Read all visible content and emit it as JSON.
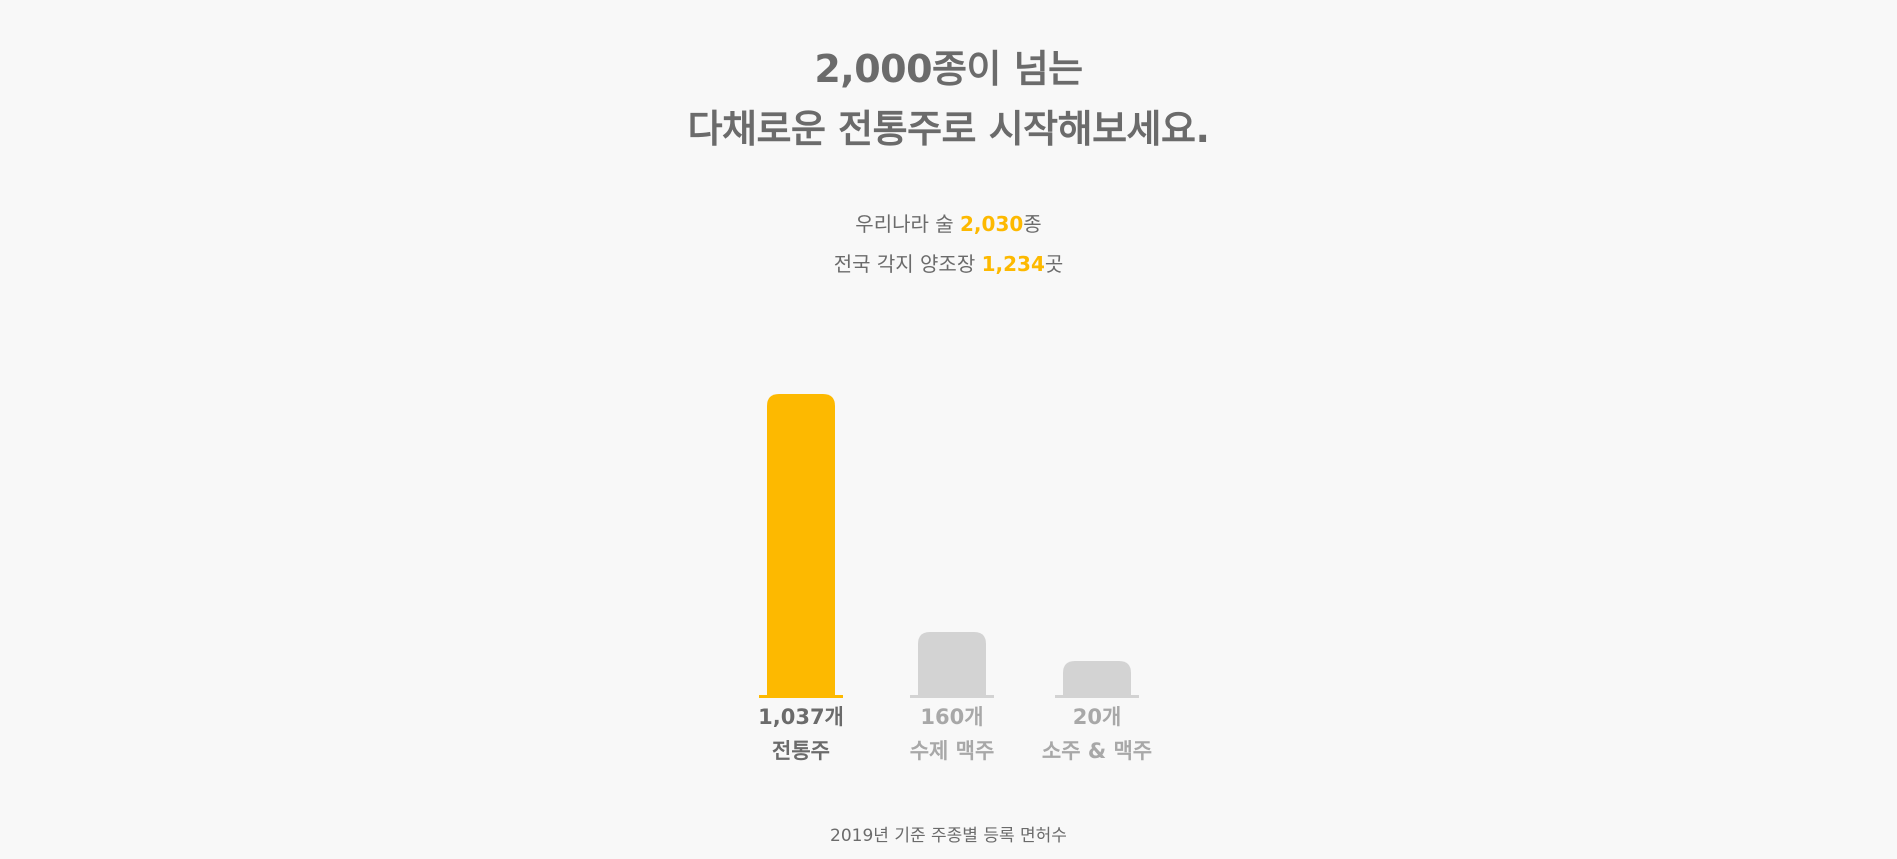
{
  "headline": {
    "line1": "2,000종이 넘는",
    "line2": "다채로운 전통주로 시작해보세요."
  },
  "stats": [
    {
      "prefix": "우리나라 술 ",
      "value": "2,030",
      "suffix": "종"
    },
    {
      "prefix": "전국 각지 양조장 ",
      "value": "1,234",
      "suffix": "곳"
    }
  ],
  "colors": {
    "highlight": "#fdb900",
    "muted_bar": "#d3d3d3",
    "text_dark": "#6b6b6b",
    "text_muted": "#a8a8a8"
  },
  "chart_data": {
    "type": "bar",
    "categories": [
      "전통주",
      "수제 맥주",
      "소주 & 맥주"
    ],
    "values": [
      1037,
      160,
      20
    ],
    "value_labels": [
      "1,037개",
      "160개",
      "20개"
    ],
    "highlighted_index": 0,
    "title": "",
    "xlabel": "",
    "ylabel": "",
    "caption": "2019년 기준 주종별 등록 면허수",
    "grid": false
  }
}
